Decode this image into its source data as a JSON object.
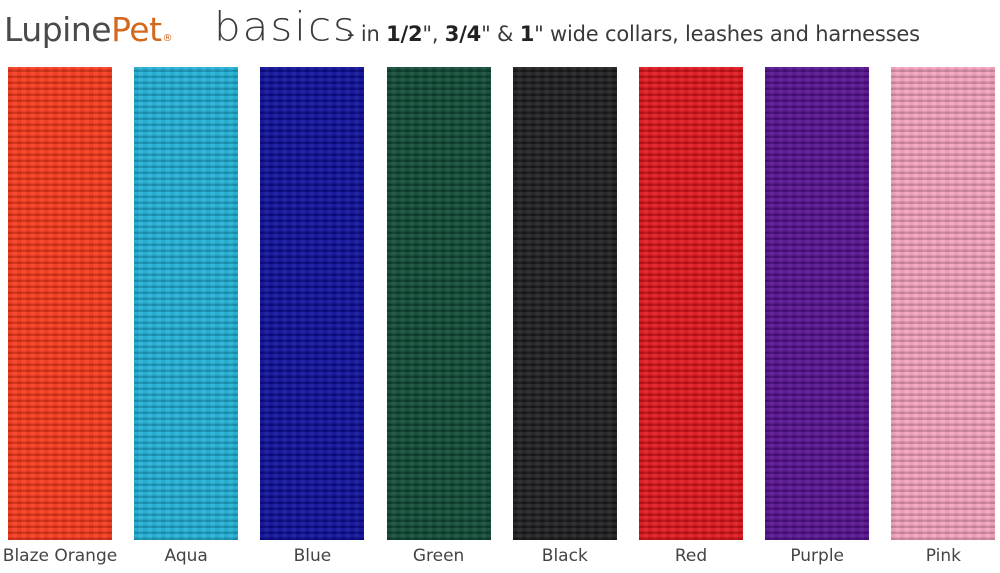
{
  "header": {
    "brand_first": "Lupine",
    "brand_second": "Pet",
    "brand_mark": "®",
    "product": "basics",
    "tagline": [
      {
        "text": "- in ",
        "bold": false
      },
      {
        "text": "1/2",
        "bold": true
      },
      {
        "text": "\", ",
        "bold": false
      },
      {
        "text": "3/4",
        "bold": true
      },
      {
        "text": "\" & ",
        "bold": false
      },
      {
        "text": "1",
        "bold": true
      },
      {
        "text": "\" wide collars, leashes and harnesses",
        "bold": false
      }
    ]
  },
  "swatches": [
    {
      "label": "Blaze Orange",
      "color": "#f9381a"
    },
    {
      "label": "Aqua",
      "color": "#1fb0d6"
    },
    {
      "label": "Blue",
      "color": "#0c0d9a"
    },
    {
      "label": "Green",
      "color": "#0f4a35"
    },
    {
      "label": "Black",
      "color": "#1c1b1e"
    },
    {
      "label": "Red",
      "color": "#e0141a"
    },
    {
      "label": "Purple",
      "color": "#55108f"
    },
    {
      "label": "Pink",
      "color": "#f6a1bd"
    }
  ]
}
